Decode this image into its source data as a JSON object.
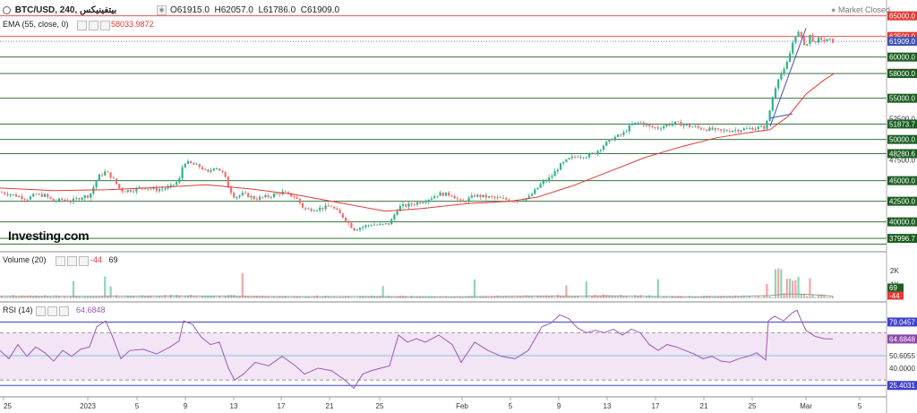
{
  "header": {
    "symbol": "BTC/USD, 240, بيتفينيكس",
    "open": "O61915.0",
    "high": "H62057.0",
    "low": "L61786.0",
    "close": "C61909.0",
    "market_status": "Market Closed",
    "ema_label": "EMA (55, close, 0)",
    "ema_value": "58033.9872",
    "volume_label": "Volume (20)",
    "volume_v1": "-44",
    "volume_v2": "69",
    "rsi_label": "RSI (14)",
    "rsi_value": "64.6848",
    "logo": "Investing.com"
  },
  "colors": {
    "up": "#2db28a",
    "down": "#ef6f6f",
    "ema": "#e53935",
    "hline": "#1b5e20",
    "red_line": "#e53935",
    "rsi_line": "#9b59b6",
    "rsi_band": "#f3e5f5",
    "rsi_level": "#3f3fd0"
  },
  "chart_data": {
    "type": "candlestick",
    "price_axis": {
      "labels": [
        "65000.0",
        "62500.0",
        "60000.0",
        "58000.0",
        "55000.0",
        "52500.0",
        "50000.0",
        "47500.0",
        "45000.0",
        "42500.0",
        "40000.0"
      ],
      "range": [
        36700,
        65400
      ]
    },
    "price_badges": [
      {
        "value": 65000.0,
        "label": "65000.0",
        "style": "red"
      },
      {
        "value": 62500.0,
        "label": "62500.0",
        "style": "red"
      },
      {
        "value": 61909.0,
        "label": "61909.0",
        "style": "blue"
      },
      {
        "value": 60000.0,
        "label": "60000.0",
        "style": "green"
      },
      {
        "value": 58034.0,
        "label": "58034.0",
        "style": "red"
      },
      {
        "value": 58000.0,
        "label": "58000.0",
        "style": "green"
      },
      {
        "value": 55000.0,
        "label": "55000.0",
        "style": "green"
      },
      {
        "value": 51873.7,
        "label": "51873.7",
        "style": "green"
      },
      {
        "value": 50000.0,
        "label": "50000.0",
        "style": "green"
      },
      {
        "value": 48280.6,
        "label": "48280.6",
        "style": "green"
      },
      {
        "value": 45000.0,
        "label": "45000.0",
        "style": "green"
      },
      {
        "value": 42500.0,
        "label": "42500.0",
        "style": "green"
      },
      {
        "value": 40000.0,
        "label": "40000.0",
        "style": "green"
      },
      {
        "value": 37996.7,
        "label": "37996.7",
        "style": "green"
      }
    ],
    "horizontal_levels_green": [
      60000,
      58000,
      55000,
      51873.7,
      50000,
      48280.6,
      45000,
      42500,
      40000,
      37996.7,
      37300
    ],
    "horizontal_levels_red": [
      65000,
      62500
    ],
    "x_axis": {
      "labels": [
        "25",
        "2023",
        "5",
        "9",
        "13",
        "17",
        "21",
        "25",
        "Feb",
        "5",
        "9",
        "13",
        "17",
        "21",
        "25",
        "Mar",
        "5"
      ]
    },
    "close_path": [
      [
        0,
        43600
      ],
      [
        10,
        43400
      ],
      [
        20,
        43100
      ],
      [
        30,
        42800
      ],
      [
        40,
        43300
      ],
      [
        50,
        43200
      ],
      [
        60,
        42500
      ],
      [
        70,
        42700
      ],
      [
        80,
        42500
      ],
      [
        90,
        43000
      ],
      [
        100,
        43200
      ],
      [
        110,
        45500
      ],
      [
        118,
        46100
      ],
      [
        125,
        45400
      ],
      [
        135,
        43800
      ],
      [
        145,
        43800
      ],
      [
        160,
        44200
      ],
      [
        175,
        43900
      ],
      [
        190,
        44200
      ],
      [
        200,
        45000
      ],
      [
        205,
        47300
      ],
      [
        215,
        47000
      ],
      [
        225,
        46600
      ],
      [
        232,
        45900
      ],
      [
        240,
        46800
      ],
      [
        250,
        45800
      ],
      [
        255,
        44200
      ],
      [
        262,
        43000
      ],
      [
        272,
        43400
      ],
      [
        285,
        42800
      ],
      [
        300,
        43100
      ],
      [
        315,
        43600
      ],
      [
        330,
        43000
      ],
      [
        340,
        41500
      ],
      [
        355,
        41600
      ],
      [
        370,
        41900
      ],
      [
        385,
        40400
      ],
      [
        395,
        39100
      ],
      [
        405,
        39400
      ],
      [
        415,
        39700
      ],
      [
        425,
        39600
      ],
      [
        435,
        39800
      ],
      [
        445,
        41800
      ],
      [
        455,
        42000
      ],
      [
        465,
        42300
      ],
      [
        475,
        42600
      ],
      [
        490,
        43400
      ],
      [
        505,
        43300
      ],
      [
        515,
        42300
      ],
      [
        530,
        43200
      ],
      [
        545,
        43000
      ],
      [
        560,
        42800
      ],
      [
        575,
        42600
      ],
      [
        590,
        42900
      ],
      [
        605,
        44700
      ],
      [
        615,
        45400
      ],
      [
        625,
        46800
      ],
      [
        635,
        47600
      ],
      [
        645,
        48000
      ],
      [
        655,
        48000
      ],
      [
        665,
        48400
      ],
      [
        675,
        49400
      ],
      [
        685,
        50200
      ],
      [
        695,
        50600
      ],
      [
        705,
        51800
      ],
      [
        715,
        52100
      ],
      [
        725,
        51500
      ],
      [
        735,
        51400
      ],
      [
        745,
        51800
      ],
      [
        755,
        52000
      ],
      [
        765,
        51700
      ],
      [
        775,
        51500
      ],
      [
        785,
        51300
      ],
      [
        795,
        51200
      ],
      [
        805,
        51000
      ],
      [
        815,
        51100
      ],
      [
        825,
        51200
      ],
      [
        835,
        51300
      ],
      [
        845,
        51400
      ],
      [
        855,
        51500
      ],
      [
        858,
        52800
      ],
      [
        865,
        56000
      ],
      [
        870,
        57800
      ],
      [
        875,
        58200
      ],
      [
        880,
        59600
      ],
      [
        885,
        61700
      ],
      [
        890,
        63200
      ],
      [
        895,
        62300
      ],
      [
        900,
        61200
      ],
      [
        905,
        62800
      ],
      [
        910,
        61400
      ],
      [
        915,
        62400
      ],
      [
        920,
        61900
      ],
      [
        925,
        62100
      ],
      [
        930,
        61909
      ]
    ],
    "ema_path": [
      [
        0,
        44100
      ],
      [
        60,
        43800
      ],
      [
        120,
        43900
      ],
      [
        180,
        44200
      ],
      [
        230,
        44500
      ],
      [
        280,
        44000
      ],
      [
        330,
        43300
      ],
      [
        380,
        42300
      ],
      [
        430,
        41300
      ],
      [
        470,
        41600
      ],
      [
        520,
        42200
      ],
      [
        570,
        42500
      ],
      [
        600,
        43000
      ],
      [
        640,
        44400
      ],
      [
        680,
        46100
      ],
      [
        720,
        47800
      ],
      [
        760,
        49100
      ],
      [
        800,
        50200
      ],
      [
        840,
        50900
      ],
      [
        860,
        51200
      ],
      [
        880,
        52800
      ],
      [
        900,
        55500
      ],
      [
        920,
        57200
      ],
      [
        932,
        58034
      ]
    ],
    "trend_lines": [
      {
        "from": [
          860,
          51600
        ],
        "to": [
          900,
          63500
        ]
      },
      {
        "from": [
          860,
          52600
        ],
        "to": [
          885,
          53100
        ]
      }
    ],
    "volume": {
      "axis_labels": [
        "2K",
        "1K"
      ],
      "badges": [
        {
          "label": "69",
          "style": "green"
        },
        {
          "label": "-44",
          "style": "red"
        }
      ],
      "avg_path": [
        [
          0,
          150
        ],
        [
          100,
          140
        ],
        [
          200,
          160
        ],
        [
          260,
          150
        ],
        [
          330,
          120
        ],
        [
          400,
          130
        ],
        [
          460,
          110
        ],
        [
          520,
          110
        ],
        [
          600,
          160
        ],
        [
          640,
          150
        ],
        [
          680,
          180
        ],
        [
          720,
          150
        ],
        [
          760,
          110
        ],
        [
          820,
          130
        ],
        [
          860,
          200
        ],
        [
          880,
          320
        ],
        [
          900,
          300
        ],
        [
          930,
          160
        ]
      ]
    },
    "rsi": {
      "axis_labels": [
        "79.0457",
        "64.6848",
        "50.6055",
        "40.0000",
        "25.4031"
      ],
      "upper": 79.0457,
      "lower": 25.4031,
      "band_top": 70,
      "band_bottom": 30,
      "mid": 50.6055,
      "range": [
        18,
        90
      ],
      "path": [
        [
          0,
          55
        ],
        [
          10,
          48
        ],
        [
          20,
          60
        ],
        [
          30,
          50
        ],
        [
          40,
          58
        ],
        [
          50,
          53
        ],
        [
          60,
          46
        ],
        [
          70,
          55
        ],
        [
          80,
          50
        ],
        [
          90,
          56
        ],
        [
          100,
          58
        ],
        [
          108,
          75
        ],
        [
          118,
          80
        ],
        [
          125,
          68
        ],
        [
          135,
          48
        ],
        [
          145,
          55
        ],
        [
          160,
          56
        ],
        [
          175,
          52
        ],
        [
          190,
          58
        ],
        [
          200,
          63
        ],
        [
          205,
          80
        ],
        [
          215,
          77
        ],
        [
          225,
          66
        ],
        [
          235,
          60
        ],
        [
          245,
          62
        ],
        [
          255,
          40
        ],
        [
          262,
          30
        ],
        [
          272,
          35
        ],
        [
          285,
          45
        ],
        [
          300,
          42
        ],
        [
          315,
          50
        ],
        [
          330,
          42
        ],
        [
          340,
          35
        ],
        [
          355,
          40
        ],
        [
          370,
          38
        ],
        [
          385,
          30
        ],
        [
          395,
          23
        ],
        [
          405,
          35
        ],
        [
          415,
          38
        ],
        [
          425,
          40
        ],
        [
          435,
          42
        ],
        [
          445,
          68
        ],
        [
          455,
          62
        ],
        [
          465,
          65
        ],
        [
          475,
          62
        ],
        [
          490,
          68
        ],
        [
          505,
          60
        ],
        [
          515,
          45
        ],
        [
          530,
          62
        ],
        [
          545,
          55
        ],
        [
          560,
          50
        ],
        [
          575,
          48
        ],
        [
          590,
          55
        ],
        [
          605,
          75
        ],
        [
          615,
          78
        ],
        [
          625,
          85
        ],
        [
          635,
          82
        ],
        [
          645,
          74
        ],
        [
          655,
          70
        ],
        [
          665,
          72
        ],
        [
          675,
          70
        ],
        [
          685,
          73
        ],
        [
          695,
          68
        ],
        [
          705,
          73
        ],
        [
          715,
          70
        ],
        [
          725,
          60
        ],
        [
          735,
          55
        ],
        [
          745,
          60
        ],
        [
          755,
          58
        ],
        [
          765,
          55
        ],
        [
          775,
          52
        ],
        [
          785,
          48
        ],
        [
          795,
          50
        ],
        [
          805,
          46
        ],
        [
          815,
          45
        ],
        [
          825,
          48
        ],
        [
          835,
          50
        ],
        [
          845,
          53
        ],
        [
          855,
          47
        ],
        [
          858,
          80
        ],
        [
          865,
          84
        ],
        [
          875,
          80
        ],
        [
          885,
          87
        ],
        [
          890,
          89
        ],
        [
          895,
          80
        ],
        [
          900,
          72
        ],
        [
          910,
          67
        ],
        [
          920,
          65
        ],
        [
          930,
          64.68
        ]
      ]
    }
  }
}
